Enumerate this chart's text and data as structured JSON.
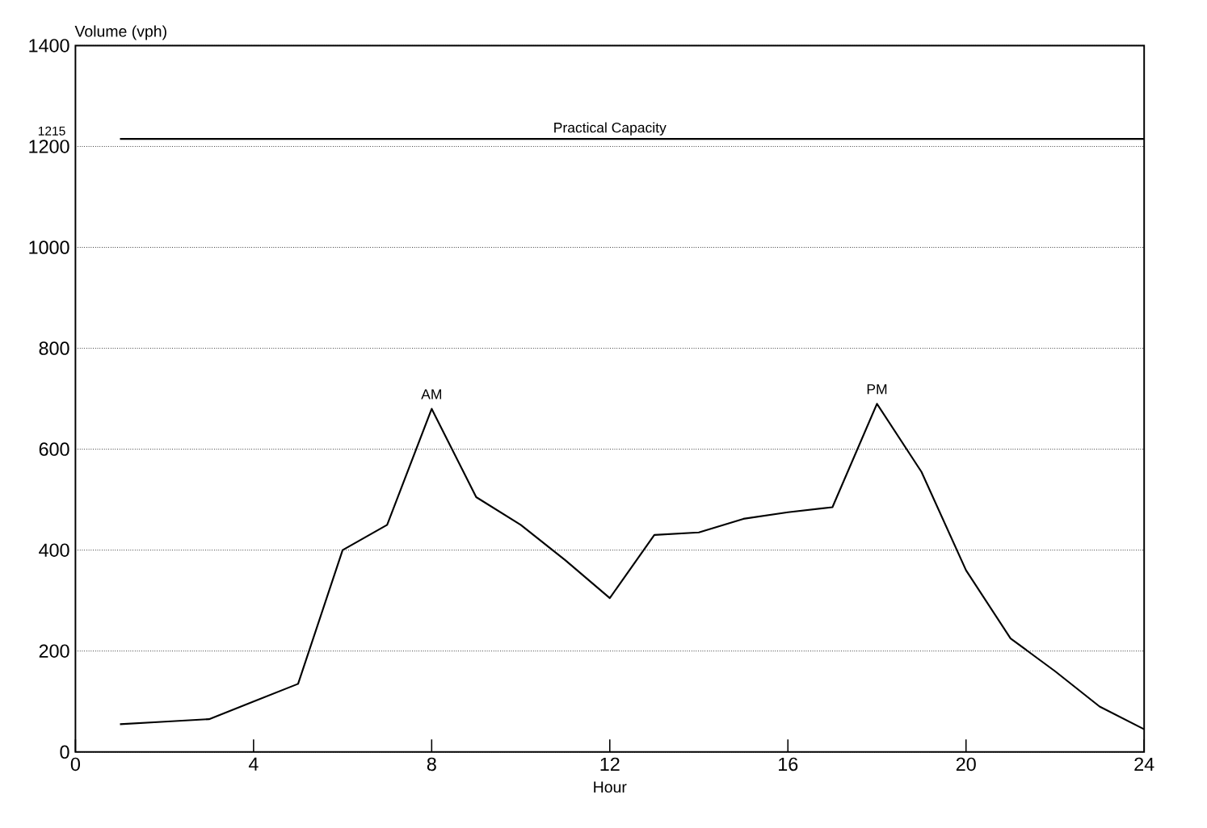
{
  "chart_data": {
    "type": "line",
    "xlabel": "Hour",
    "ylabel": "Volume (vph)",
    "x": [
      1,
      2,
      3,
      4,
      5,
      6,
      7,
      8,
      9,
      10,
      11,
      12,
      13,
      14,
      15,
      16,
      17,
      18,
      19,
      20,
      21,
      22,
      23,
      24
    ],
    "series": [
      {
        "color": "#000000",
        "values": [
          55,
          60,
          65,
          100,
          135,
          400,
          450,
          680,
          505,
          450,
          380,
          305,
          430,
          435,
          462,
          475,
          485,
          690,
          555,
          360,
          225,
          160,
          90,
          45
        ]
      }
    ],
    "xlim": [
      0,
      24
    ],
    "xticks": [
      0,
      4,
      8,
      12,
      16,
      20,
      24
    ],
    "ylim": [
      0,
      1400
    ],
    "yticks": [
      0,
      200,
      400,
      600,
      800,
      1000,
      1200,
      1400
    ],
    "grid": "y",
    "marker": "none",
    "line_style": "solid",
    "ref_lines": [
      {
        "axis": "y",
        "value": 1215,
        "label": "Practical Capacity",
        "color": "#000000"
      }
    ],
    "annotations": [
      {
        "text": "AM",
        "x": 8,
        "y": 680
      },
      {
        "text": "PM",
        "x": 18,
        "y": 690
      },
      "1215"
    ]
  }
}
